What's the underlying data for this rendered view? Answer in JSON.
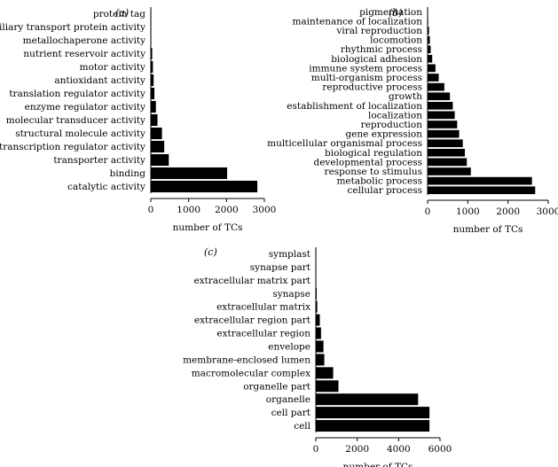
{
  "chart_data": [
    {
      "type": "bar",
      "orientation": "horizontal",
      "panel_label": "(a)",
      "xlabel": "number of TCs",
      "xlim": [
        0,
        3000
      ],
      "xticks": [
        0,
        1000,
        2000,
        3000
      ],
      "categories": [
        "protein tag",
        "auxiliary transport protein activity",
        "metallochaperone activity",
        "nutrient reservoir activity",
        "motor activity",
        "antioxidant activity",
        "translation regulator activity",
        "enzyme regulator activity",
        "molecular transducer activity",
        "structural molecule activity",
        "transcription regulator activity",
        "transporter activity",
        "binding",
        "catalytic activity"
      ],
      "values": [
        5,
        10,
        15,
        40,
        60,
        80,
        100,
        140,
        180,
        300,
        360,
        480,
        2020,
        2820
      ],
      "colors": {
        "bar": "#000000"
      }
    },
    {
      "type": "bar",
      "orientation": "horizontal",
      "panel_label": "(b)",
      "xlabel": "number of TCs",
      "xlim": [
        0,
        3000
      ],
      "xticks": [
        0,
        1000,
        2000,
        3000
      ],
      "categories": [
        "pigmentation",
        "maintenance of localization",
        "viral reproduction",
        "locomotion",
        "rhythmic process",
        "biological adhesion",
        "immune system process",
        "multi-organism process",
        "reproductive process",
        "growth",
        "establishment of localization",
        "localization",
        "reproduction",
        "gene expression",
        "multicellular organismal process",
        "biological regulation",
        "developmental process",
        "response to stimulus",
        "metabolic process",
        "cellular process"
      ],
      "values": [
        10,
        20,
        40,
        60,
        80,
        120,
        200,
        280,
        420,
        560,
        630,
        680,
        740,
        790,
        880,
        930,
        980,
        1080,
        2600,
        2680
      ],
      "colors": {
        "bar": "#000000"
      }
    },
    {
      "type": "bar",
      "orientation": "horizontal",
      "panel_label": "(c)",
      "xlabel": "number of TCs",
      "xlim": [
        0,
        6000
      ],
      "xticks": [
        0,
        2000,
        4000,
        6000
      ],
      "categories": [
        "symplast",
        "synapse part",
        "extracellular matrix part",
        "synapse",
        "extracellular matrix",
        "extracellular region part",
        "extracellular region",
        "envelope",
        "membrane-enclosed lumen",
        "macromolecular complex",
        "organelle part",
        "organelle",
        "cell part",
        "cell"
      ],
      "values": [
        5,
        20,
        30,
        50,
        80,
        200,
        260,
        380,
        420,
        850,
        1100,
        4950,
        5500,
        5500
      ],
      "colors": {
        "bar": "#000000"
      }
    }
  ]
}
